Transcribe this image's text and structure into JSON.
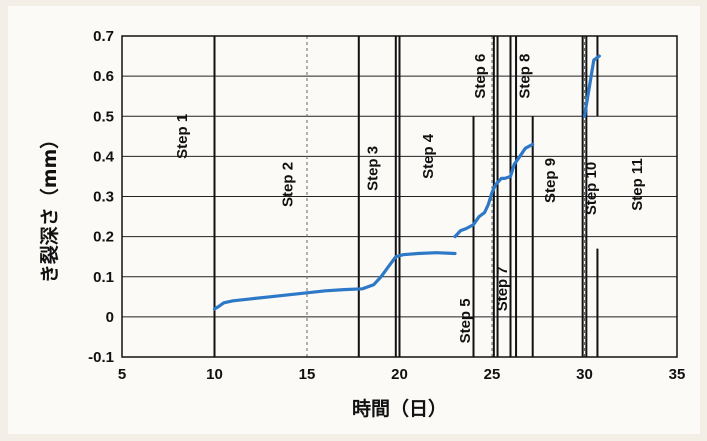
{
  "chart_data": {
    "type": "line",
    "xlabel": "時間（日）",
    "ylabel": "き裂深さ（mm）",
    "xlim": [
      5,
      35
    ],
    "ylim": [
      -0.1,
      0.7
    ],
    "x_ticks": [
      5,
      10,
      15,
      20,
      25,
      30,
      35
    ],
    "y_ticks": [
      -0.1,
      0,
      0.1,
      0.2,
      0.3,
      0.4,
      0.5,
      0.6,
      0.7
    ],
    "grid": true,
    "series_color": "#2d79c7",
    "series": [
      {
        "x": [
          10.0,
          10.2,
          10.5,
          11,
          12,
          13,
          14,
          15,
          16,
          17,
          18,
          18.6,
          19.0,
          19.4,
          19.8,
          20.2,
          21,
          22,
          23,
          23.0,
          23.3,
          23.6,
          24.0,
          24.3,
          24.6,
          24.8,
          25.0,
          25.2,
          25.5,
          25.7,
          26.0,
          26.2,
          26.5,
          26.8,
          27.0,
          27.2,
          30.0,
          30.5,
          30.8
        ],
        "y": [
          0.02,
          0.025,
          0.035,
          0.04,
          0.045,
          0.05,
          0.055,
          0.06,
          0.065,
          0.068,
          0.07,
          0.08,
          0.1,
          0.125,
          0.15,
          0.155,
          0.158,
          0.16,
          0.158,
          0.2,
          0.215,
          0.22,
          0.23,
          0.25,
          0.26,
          0.28,
          0.31,
          0.33,
          0.345,
          0.345,
          0.35,
          0.38,
          0.4,
          0.42,
          0.425,
          0.43,
          0.5,
          0.64,
          0.65
        ]
      }
    ],
    "step_lines": [
      {
        "x": 10.0,
        "from": -0.1,
        "to": 0.7
      },
      {
        "x": 17.8,
        "from": -0.1,
        "to": 0.7
      },
      {
        "x": 19.8,
        "from": -0.1,
        "to": 0.7
      },
      {
        "x": 20.0,
        "from": -0.1,
        "to": 0.7
      },
      {
        "x": 24.0,
        "from": -0.1,
        "to": 0.5
      },
      {
        "x": 25.1,
        "from": -0.1,
        "to": 0.7
      },
      {
        "x": 25.3,
        "from": -0.1,
        "to": 0.7
      },
      {
        "x": 26.0,
        "from": -0.1,
        "to": 0.7
      },
      {
        "x": 26.3,
        "from": -0.1,
        "to": 0.7
      },
      {
        "x": 27.2,
        "from": -0.1,
        "to": 0.5
      },
      {
        "x": 29.9,
        "from": -0.1,
        "to": 0.7
      },
      {
        "x": 30.1,
        "from": -0.1,
        "to": 0.7
      },
      {
        "x": 30.7,
        "from": -0.1,
        "to": 0.17
      },
      {
        "x": 30.7,
        "from": 0.5,
        "to": 0.7
      }
    ],
    "annotations": [
      {
        "text": "Step 1",
        "x": 8.3,
        "y": 0.45
      },
      {
        "text": "Step 2",
        "x": 14.0,
        "y": 0.33
      },
      {
        "text": "Step 3",
        "x": 18.6,
        "y": 0.37
      },
      {
        "text": "Step 4",
        "x": 21.6,
        "y": 0.4
      },
      {
        "text": "Step 5",
        "x": 23.6,
        "y": -0.01
      },
      {
        "text": "Step 6",
        "x": 24.4,
        "y": 0.6
      },
      {
        "text": "Step 7",
        "x": 25.6,
        "y": 0.07
      },
      {
        "text": "Step 8",
        "x": 26.8,
        "y": 0.6
      },
      {
        "text": "Step 9",
        "x": 28.2,
        "y": 0.34
      },
      {
        "text": "Step 10",
        "x": 30.4,
        "y": 0.32
      },
      {
        "text": "Step 11",
        "x": 32.9,
        "y": 0.33
      }
    ]
  }
}
